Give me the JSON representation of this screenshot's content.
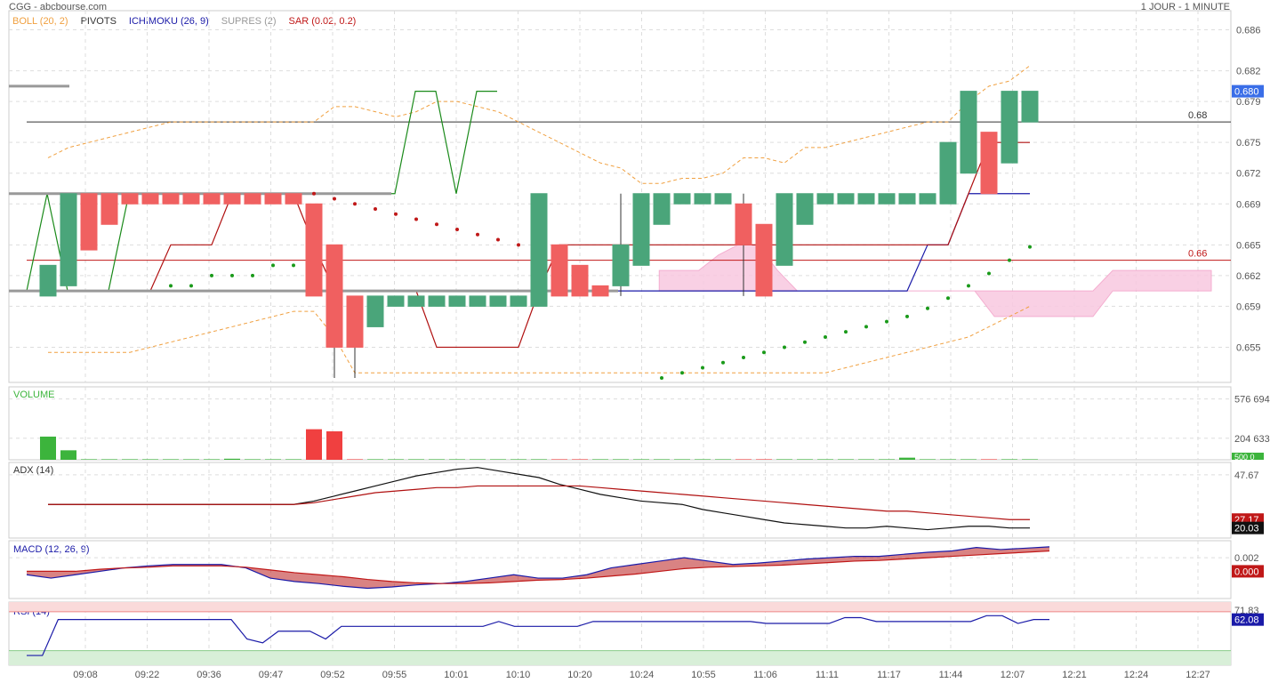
{
  "header": {
    "source": "CGG - abcbourse.com",
    "period": "1 JOUR - 1 MINUTE"
  },
  "legend": [
    {
      "label": "BOLL (20, 2)",
      "color": "#f0a040"
    },
    {
      "label": "PIVOTS",
      "color": "#333333"
    },
    {
      "label": "ICHIMOKU (26, 9)",
      "color": "#1a1aa8"
    },
    {
      "label": "SUPRES (2)",
      "color": "#999999"
    },
    {
      "label": "SAR (0.02, 0.2)",
      "color": "#c01818"
    }
  ],
  "panels": {
    "volume": {
      "label": "VOLUME",
      "color": "#3cb43c"
    },
    "adx": {
      "label": "ADX (14)",
      "color": "#333333"
    },
    "macd": {
      "label": "MACD (12, 26, 9)",
      "color": "#1a1aa8"
    },
    "rsi": {
      "label": "RSI (14)",
      "color": "#1a1aa8"
    }
  },
  "colors": {
    "up": "#4aa57a",
    "down": "#f06060",
    "grid": "#dddddd",
    "boll": "#f0a040",
    "sar": "#c01818",
    "ichimoku_fast": "#1a1aa8",
    "ichimoku_slow": "#b01010",
    "chikou": "#1a8a1a",
    "cloud": "#f9c8e0"
  },
  "chart_data": {
    "type": "candlestick",
    "x_tick_labels": [
      "09:08",
      "09:22",
      "09:36",
      "09:47",
      "09:52",
      "09:55",
      "10:01",
      "10:10",
      "10:20",
      "10:24",
      "10:55",
      "11:06",
      "11:11",
      "11:17",
      "11:44",
      "12:07",
      "12:21",
      "12:24",
      "12:27"
    ],
    "price": {
      "ylim": [
        0.652,
        0.687
      ],
      "y_ticks": [
        "0.686",
        "0.682",
        "0.679",
        "0.675",
        "0.672",
        "0.669",
        "0.665",
        "0.662",
        "0.659",
        "0.655"
      ],
      "last_price": "0.680",
      "pivot_lines": [
        {
          "value": 0.677,
          "label": "0.68",
          "color": "#333333"
        },
        {
          "value": 0.6635,
          "label": "0.66",
          "color": "#c01818"
        }
      ],
      "candles": [
        {
          "o": 0.66,
          "h": 0.663,
          "l": 0.66,
          "c": 0.663
        },
        {
          "o": 0.661,
          "h": 0.67,
          "l": 0.661,
          "c": 0.67
        },
        {
          "o": 0.67,
          "h": 0.67,
          "l": 0.6645,
          "c": 0.6645
        },
        {
          "o": 0.67,
          "h": 0.67,
          "l": 0.667,
          "c": 0.667
        },
        {
          "o": 0.67,
          "h": 0.67,
          "l": 0.669,
          "c": 0.669
        },
        {
          "o": 0.67,
          "h": 0.67,
          "l": 0.669,
          "c": 0.669
        },
        {
          "o": 0.67,
          "h": 0.67,
          "l": 0.669,
          "c": 0.669
        },
        {
          "o": 0.67,
          "h": 0.67,
          "l": 0.669,
          "c": 0.669
        },
        {
          "o": 0.67,
          "h": 0.67,
          "l": 0.669,
          "c": 0.669
        },
        {
          "o": 0.67,
          "h": 0.67,
          "l": 0.669,
          "c": 0.669
        },
        {
          "o": 0.67,
          "h": 0.67,
          "l": 0.669,
          "c": 0.669
        },
        {
          "o": 0.67,
          "h": 0.67,
          "l": 0.669,
          "c": 0.669
        },
        {
          "o": 0.67,
          "h": 0.67,
          "l": 0.669,
          "c": 0.669
        },
        {
          "o": 0.669,
          "h": 0.669,
          "l": 0.66,
          "c": 0.66
        },
        {
          "o": 0.665,
          "h": 0.665,
          "l": 0.652,
          "c": 0.655
        },
        {
          "o": 0.66,
          "h": 0.66,
          "l": 0.652,
          "c": 0.655
        },
        {
          "o": 0.657,
          "h": 0.66,
          "l": 0.657,
          "c": 0.66
        },
        {
          "o": 0.659,
          "h": 0.66,
          "l": 0.659,
          "c": 0.66
        },
        {
          "o": 0.659,
          "h": 0.66,
          "l": 0.659,
          "c": 0.66
        },
        {
          "o": 0.659,
          "h": 0.66,
          "l": 0.659,
          "c": 0.66
        },
        {
          "o": 0.659,
          "h": 0.66,
          "l": 0.659,
          "c": 0.66
        },
        {
          "o": 0.659,
          "h": 0.66,
          "l": 0.659,
          "c": 0.66
        },
        {
          "o": 0.659,
          "h": 0.66,
          "l": 0.659,
          "c": 0.66
        },
        {
          "o": 0.659,
          "h": 0.66,
          "l": 0.659,
          "c": 0.66
        },
        {
          "o": 0.659,
          "h": 0.67,
          "l": 0.659,
          "c": 0.67
        },
        {
          "o": 0.665,
          "h": 0.665,
          "l": 0.66,
          "c": 0.66
        },
        {
          "o": 0.663,
          "h": 0.663,
          "l": 0.66,
          "c": 0.66
        },
        {
          "o": 0.661,
          "h": 0.661,
          "l": 0.66,
          "c": 0.66
        },
        {
          "o": 0.661,
          "h": 0.67,
          "l": 0.66,
          "c": 0.665
        },
        {
          "o": 0.663,
          "h": 0.67,
          "l": 0.663,
          "c": 0.67
        },
        {
          "o": 0.667,
          "h": 0.67,
          "l": 0.667,
          "c": 0.67
        },
        {
          "o": 0.669,
          "h": 0.67,
          "l": 0.669,
          "c": 0.67
        },
        {
          "o": 0.669,
          "h": 0.67,
          "l": 0.669,
          "c": 0.67
        },
        {
          "o": 0.669,
          "h": 0.67,
          "l": 0.669,
          "c": 0.67
        },
        {
          "o": 0.669,
          "h": 0.67,
          "l": 0.66,
          "c": 0.665
        },
        {
          "o": 0.667,
          "h": 0.667,
          "l": 0.66,
          "c": 0.66
        },
        {
          "o": 0.663,
          "h": 0.67,
          "l": 0.663,
          "c": 0.67
        },
        {
          "o": 0.667,
          "h": 0.67,
          "l": 0.667,
          "c": 0.67
        },
        {
          "o": 0.669,
          "h": 0.67,
          "l": 0.669,
          "c": 0.67
        },
        {
          "o": 0.669,
          "h": 0.67,
          "l": 0.669,
          "c": 0.67
        },
        {
          "o": 0.669,
          "h": 0.67,
          "l": 0.669,
          "c": 0.67
        },
        {
          "o": 0.669,
          "h": 0.67,
          "l": 0.669,
          "c": 0.67
        },
        {
          "o": 0.669,
          "h": 0.67,
          "l": 0.669,
          "c": 0.67
        },
        {
          "o": 0.669,
          "h": 0.67,
          "l": 0.669,
          "c": 0.67
        },
        {
          "o": 0.669,
          "h": 0.675,
          "l": 0.669,
          "c": 0.675
        },
        {
          "o": 0.672,
          "h": 0.68,
          "l": 0.672,
          "c": 0.68
        },
        {
          "o": 0.676,
          "h": 0.676,
          "l": 0.67,
          "c": 0.67
        },
        {
          "o": 0.673,
          "h": 0.68,
          "l": 0.673,
          "c": 0.68
        },
        {
          "o": 0.677,
          "h": 0.68,
          "l": 0.677,
          "c": 0.68
        }
      ],
      "sar": [
        null,
        null,
        null,
        null,
        null,
        null,
        0.661,
        0.661,
        0.662,
        0.662,
        0.662,
        0.663,
        0.663,
        0.67,
        0.6695,
        0.669,
        0.6685,
        0.668,
        0.6675,
        0.667,
        0.6665,
        0.666,
        0.6655,
        0.665,
        null,
        null,
        null,
        null,
        null,
        null,
        0.652,
        0.6525,
        0.653,
        0.6535,
        0.654,
        0.6545,
        0.655,
        0.6555,
        0.656,
        0.6565,
        0.657,
        0.6575,
        0.658,
        0.6588,
        0.6598,
        0.661,
        0.6622,
        0.6635,
        0.6648
      ],
      "boll_upper": [
        0.6735,
        0.6745,
        0.675,
        0.6755,
        0.676,
        0.6765,
        0.677,
        0.677,
        0.677,
        0.677,
        0.677,
        0.677,
        0.677,
        0.677,
        0.6785,
        0.6785,
        0.678,
        0.6775,
        0.678,
        0.679,
        0.679,
        0.6785,
        0.678,
        0.677,
        0.676,
        0.675,
        0.674,
        0.673,
        0.6725,
        0.671,
        0.671,
        0.6715,
        0.6715,
        0.672,
        0.6735,
        0.6735,
        0.673,
        0.6745,
        0.6745,
        0.675,
        0.6755,
        0.676,
        0.6765,
        0.677,
        0.677,
        0.679,
        0.6805,
        0.681,
        0.6825
      ],
      "boll_lower": [
        0.6545,
        0.6545,
        0.6545,
        0.6545,
        0.6545,
        0.655,
        0.6555,
        0.656,
        0.6565,
        0.657,
        0.6575,
        0.658,
        0.6585,
        0.6585,
        0.656,
        0.6525,
        0.6525,
        0.6525,
        0.6525,
        0.6525,
        0.6525,
        0.6525,
        0.6525,
        0.6525,
        0.6525,
        0.6525,
        0.6525,
        0.6525,
        0.6525,
        0.6525,
        0.6525,
        0.6525,
        0.6525,
        0.6525,
        0.6525,
        0.6525,
        0.6525,
        0.6525,
        0.6525,
        0.653,
        0.6535,
        0.654,
        0.6545,
        0.655,
        0.6555,
        0.656,
        0.657,
        0.658,
        0.659
      ],
      "ichimoku_kijun": [
        0.6605,
        0.6605,
        0.6605,
        0.6605,
        0.6605,
        0.6605,
        0.6605,
        0.6605,
        0.6605,
        0.6605,
        0.6605,
        0.6605,
        0.6605,
        0.6605,
        0.6605,
        0.6605,
        0.6605,
        0.6605,
        0.6605,
        0.6605,
        0.6605,
        0.6605,
        0.6605,
        0.6605,
        0.6605,
        0.6605,
        0.6605,
        0.6605,
        0.6605,
        0.6605,
        0.6605,
        0.6605,
        0.6605,
        0.6605,
        0.6605,
        0.6605,
        0.6605,
        0.6605,
        0.6605,
        0.6605,
        0.6605,
        0.6605,
        0.6605,
        0.665,
        0.665,
        0.67,
        0.67,
        0.67,
        0.67
      ],
      "ichimoku_tenkan": [
        0.6605,
        0.6605,
        0.6605,
        0.6605,
        0.6605,
        0.6605,
        0.665,
        0.665,
        0.665,
        0.67,
        0.67,
        0.67,
        0.67,
        0.665,
        0.6605,
        0.6605,
        0.6605,
        0.6605,
        0.6605,
        0.655,
        0.655,
        0.655,
        0.655,
        0.655,
        0.6605,
        0.665,
        0.665,
        0.665,
        0.665,
        0.665,
        0.665,
        0.665,
        0.665,
        0.665,
        0.665,
        0.665,
        0.665,
        0.665,
        0.665,
        0.665,
        0.665,
        0.665,
        0.665,
        0.665,
        0.665,
        0.67,
        0.675,
        0.675,
        0.675
      ],
      "chikou": [
        0.6605,
        0.67,
        0.6605,
        0.6605,
        0.6605,
        0.67,
        0.67,
        0.67,
        0.67,
        0.67,
        0.67,
        0.67,
        0.67,
        0.67,
        0.67,
        0.67,
        0.67,
        0.67,
        0.67,
        0.68,
        0.68,
        0.67,
        0.68,
        0.68
      ],
      "cloud_top": [
        null,
        null,
        null,
        null,
        null,
        null,
        null,
        null,
        null,
        null,
        null,
        null,
        null,
        null,
        null,
        null,
        null,
        null,
        null,
        null,
        null,
        null,
        null,
        null,
        null,
        null,
        null,
        null,
        null,
        null,
        null,
        0.6625,
        0.6625,
        0.6625,
        0.664,
        0.665,
        0.665,
        0.6625,
        0.6605,
        0.6605,
        0.6605,
        0.6605,
        0.6605,
        0.6605,
        0.6605,
        0.6605,
        0.6605,
        0.6605,
        0.6605,
        0.6605,
        0.6605,
        0.6605,
        0.6605,
        0.6605,
        0.6625,
        0.6625,
        0.6625,
        0.6625,
        0.6625,
        0.6625
      ],
      "cloud_bottom": [
        null,
        null,
        null,
        null,
        null,
        null,
        null,
        null,
        null,
        null,
        null,
        null,
        null,
        null,
        null,
        null,
        null,
        null,
        null,
        null,
        null,
        null,
        null,
        null,
        null,
        null,
        null,
        null,
        null,
        null,
        null,
        0.6605,
        0.6605,
        0.6605,
        0.6605,
        0.6605,
        0.6605,
        0.6605,
        0.6605,
        0.6605,
        0.6605,
        0.6605,
        0.6605,
        0.6605,
        0.6605,
        0.6605,
        0.6605,
        0.6605,
        0.658,
        0.658,
        0.658,
        0.658,
        0.658,
        0.658,
        0.6605,
        0.6605,
        0.6605,
        0.6605,
        0.6605,
        0.6605
      ]
    },
    "volume": {
      "y_ticks": [
        "576 694",
        "204 633"
      ],
      "last_label": "500 0",
      "values": [
        220000,
        90000,
        5000,
        5000,
        5000,
        5000,
        5000,
        5000,
        5000,
        10000,
        5000,
        5000,
        5000,
        290000,
        270000,
        5000,
        5000,
        5000,
        5000,
        5000,
        5000,
        5000,
        5000,
        5000,
        5000,
        5000,
        5000,
        5000,
        5000,
        5000,
        5000,
        5000,
        5000,
        5000,
        5000,
        5000,
        5000,
        5000,
        5000,
        5000,
        5000,
        5000,
        20000,
        5000,
        5000,
        5000,
        5000,
        5000,
        5000
      ],
      "colors": [
        "up",
        "up",
        "up",
        "up",
        "up",
        "up",
        "up",
        "up",
        "up",
        "up",
        "up",
        "up",
        "up",
        "down",
        "down",
        "down",
        "up",
        "up",
        "up",
        "up",
        "up",
        "up",
        "up",
        "up",
        "up",
        "down",
        "down",
        "up",
        "up",
        "up",
        "up",
        "up",
        "up",
        "up",
        "down",
        "down",
        "up",
        "up",
        "up",
        "up",
        "up",
        "up",
        "up",
        "up",
        "up",
        "up",
        "down",
        "up",
        "up"
      ]
    },
    "adx": {
      "y_ticks": [
        "47.67"
      ],
      "last_values": [
        "27.17",
        "20.03"
      ],
      "adx": [
        30,
        30,
        30,
        30,
        30,
        30,
        30,
        30,
        30,
        30,
        30,
        30,
        30,
        32,
        35,
        38,
        41,
        44,
        47,
        49,
        51,
        52,
        50,
        48,
        46,
        42,
        39,
        36,
        34,
        32,
        31,
        30,
        27,
        25,
        23,
        21,
        19,
        18,
        17,
        16,
        16,
        17,
        16,
        15,
        16,
        17,
        17,
        16,
        16
      ],
      "di": [
        30,
        30,
        30,
        30,
        30,
        30,
        30,
        30,
        30,
        30,
        30,
        30,
        30,
        31,
        33,
        35,
        37,
        38,
        39,
        40,
        40,
        41,
        41,
        41,
        41,
        41,
        41,
        40,
        39,
        38,
        37,
        36,
        35,
        34,
        33,
        32,
        31,
        30,
        29,
        28,
        27,
        26,
        26,
        25,
        24,
        23,
        22,
        21,
        21
      ]
    },
    "macd": {
      "y_ticks": [
        "0.002"
      ],
      "last_values": [
        "0.000"
      ],
      "macd": [
        -0.0005,
        -0.001,
        -0.0005,
        0,
        0.0005,
        0.0008,
        0.001,
        0.001,
        0.001,
        0.0005,
        -0.001,
        -0.0015,
        -0.0018,
        -0.0022,
        -0.0025,
        -0.0023,
        -0.002,
        -0.0018,
        -0.0015,
        -0.001,
        -0.0005,
        -0.001,
        -0.001,
        -0.0005,
        0.0005,
        0.001,
        0.0015,
        0.002,
        0.0015,
        0.001,
        0.0012,
        0.0015,
        0.0018,
        0.002,
        0.0022,
        0.0022,
        0.0025,
        0.0028,
        0.003,
        0.0035,
        0.0032,
        0.0034,
        0.0036
      ],
      "signal": [
        0,
        0,
        0,
        0.0003,
        0.0005,
        0.0006,
        0.0008,
        0.0008,
        0.0008,
        0.0006,
        0.0002,
        -0.0002,
        -0.0005,
        -0.0008,
        -0.0012,
        -0.0015,
        -0.0017,
        -0.0018,
        -0.0018,
        -0.0017,
        -0.0015,
        -0.0013,
        -0.0012,
        -0.001,
        -0.0007,
        -0.0004,
        0,
        0.0004,
        0.0006,
        0.0007,
        0.0008,
        0.0009,
        0.0011,
        0.0013,
        0.0015,
        0.0016,
        0.0018,
        0.002,
        0.0022,
        0.0024,
        0.0026,
        0.0028,
        0.003
      ]
    },
    "rsi": {
      "y_ticks": [
        "71.83"
      ],
      "last_values": [
        "62.08"
      ],
      "overbought": 70,
      "oversold": 30,
      "values": [
        25,
        25,
        62,
        62,
        62,
        62,
        62,
        62,
        62,
        62,
        62,
        62,
        62,
        62,
        42,
        38,
        50,
        50,
        50,
        42,
        55,
        55,
        55,
        55,
        55,
        55,
        55,
        55,
        55,
        55,
        60,
        55,
        55,
        55,
        55,
        55,
        60,
        60,
        60,
        60,
        60,
        60,
        60,
        60,
        60,
        60,
        60,
        58,
        58,
        58,
        58,
        58,
        64,
        64,
        60,
        60,
        60,
        60,
        60,
        60,
        60,
        66,
        66,
        58,
        62,
        62
      ]
    }
  }
}
